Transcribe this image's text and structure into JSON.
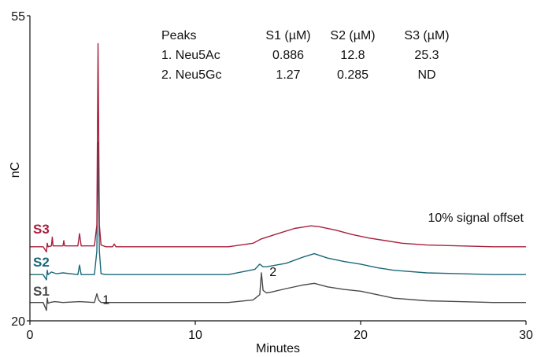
{
  "chart_data": {
    "type": "line",
    "xlabel": "Minutes",
    "ylabel": "nC",
    "xlim": [
      0,
      30
    ],
    "ylim": [
      20,
      55
    ],
    "x_ticks": [
      0,
      10,
      20,
      30
    ],
    "y_ticks": [
      20,
      55
    ],
    "grid": false,
    "annotation": "10% signal offset",
    "peak_labels": [
      {
        "label": "1",
        "x": 4.2,
        "y": 21.6
      },
      {
        "label": "2",
        "x": 14.3,
        "y": 24.8
      }
    ],
    "table": {
      "headers": [
        "Peaks",
        "S1 (µM)",
        "S2 (µM)",
        "S3 (µM)"
      ],
      "rows": [
        [
          "1. Neu5Ac",
          "0.886",
          "12.8",
          "25.3"
        ],
        [
          "2. Neu5Gc",
          "1.27",
          "0.285",
          "ND"
        ]
      ]
    },
    "series": [
      {
        "name": "S1",
        "color": "#4a4a4a",
        "x": [
          0,
          0.8,
          1.0,
          1.05,
          1.1,
          1.2,
          1.5,
          2.0,
          3.0,
          3.9,
          4.05,
          4.15,
          4.3,
          4.6,
          6,
          8,
          10,
          12,
          13.5,
          13.9,
          14.0,
          14.1,
          14.3,
          14.6,
          15.5,
          16.5,
          17.2,
          18.0,
          19.0,
          20.0,
          21.0,
          22.0,
          24.0,
          26.0,
          28.0,
          30.0
        ],
        "y": [
          22.1,
          22.1,
          21.2,
          22.6,
          22.0,
          22.1,
          22.2,
          22.1,
          22.2,
          22.1,
          23.1,
          22.4,
          22.1,
          22.1,
          22.1,
          22.1,
          22.1,
          22.1,
          22.4,
          23.0,
          25.5,
          23.5,
          23.2,
          23.3,
          23.7,
          24.1,
          24.3,
          23.9,
          23.6,
          23.4,
          23.0,
          22.6,
          22.3,
          22.2,
          22.1,
          22.1
        ]
      },
      {
        "name": "S2",
        "color": "#1a6878",
        "x": [
          0,
          0.8,
          1.0,
          1.05,
          1.1,
          1.3,
          1.6,
          2.0,
          2.9,
          3.0,
          3.1,
          3.9,
          4.05,
          4.12,
          4.2,
          4.3,
          4.6,
          6,
          8,
          10,
          12,
          13.6,
          13.9,
          14.1,
          14.3,
          15.5,
          16.5,
          17.2,
          18.0,
          19.0,
          20.0,
          21.0,
          22.0,
          24.0,
          26.0,
          28.0,
          30.0
        ],
        "y": [
          25.3,
          25.3,
          24.7,
          25.8,
          25.3,
          25.6,
          25.4,
          25.5,
          25.3,
          26.4,
          25.3,
          25.3,
          28.0,
          40.5,
          28.0,
          25.4,
          25.3,
          25.3,
          25.3,
          25.3,
          25.3,
          25.9,
          26.5,
          26.2,
          26.2,
          26.6,
          27.3,
          27.7,
          27.2,
          26.8,
          26.5,
          26.1,
          25.8,
          25.5,
          25.4,
          25.3,
          25.3
        ]
      },
      {
        "name": "S3",
        "color": "#a8203c",
        "x": [
          0,
          0.8,
          1.0,
          1.05,
          1.1,
          1.3,
          1.35,
          1.4,
          1.6,
          2.0,
          2.05,
          2.1,
          2.9,
          3.0,
          3.1,
          3.9,
          4.05,
          4.12,
          4.2,
          4.3,
          4.6,
          5.0,
          5.1,
          5.2,
          8,
          10,
          12,
          13.5,
          14.0,
          15.0,
          16.0,
          17.0,
          17.5,
          18.5,
          19.5,
          20.5,
          21.5,
          22.5,
          24.0,
          26.0,
          28.0,
          30.0
        ],
        "y": [
          28.5,
          28.5,
          27.9,
          28.9,
          28.5,
          28.6,
          29.6,
          28.6,
          28.6,
          28.6,
          29.2,
          28.6,
          28.6,
          30.0,
          28.6,
          28.6,
          31.0,
          51.8,
          31.0,
          28.7,
          28.5,
          28.5,
          28.8,
          28.5,
          28.5,
          28.5,
          28.5,
          28.9,
          29.4,
          30.0,
          30.6,
          30.9,
          30.8,
          30.4,
          29.9,
          29.5,
          29.2,
          28.9,
          28.7,
          28.6,
          28.5,
          28.5
        ]
      }
    ]
  }
}
